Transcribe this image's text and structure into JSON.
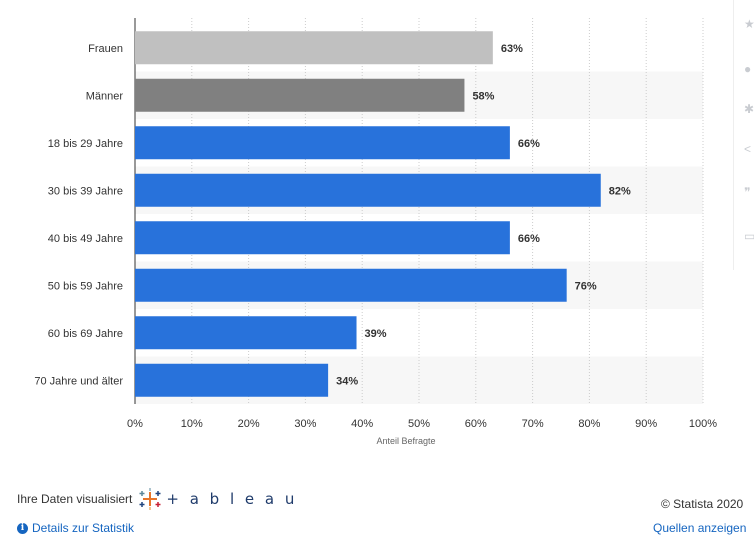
{
  "chart_data": {
    "type": "bar",
    "orientation": "horizontal",
    "categories": [
      "Frauen",
      "Männer",
      "18 bis 29 Jahre",
      "30 bis 39 Jahre",
      "40 bis 49 Jahre",
      "50 bis 59 Jahre",
      "60 bis 69 Jahre",
      "70 Jahre und älter"
    ],
    "values": [
      63,
      58,
      66,
      82,
      66,
      76,
      39,
      34
    ],
    "value_labels": [
      "63%",
      "58%",
      "66%",
      "82%",
      "66%",
      "76%",
      "39%",
      "34%"
    ],
    "bar_colors": [
      "#c0c0c0",
      "#808080",
      "#2872db",
      "#2872db",
      "#2872db",
      "#2872db",
      "#2872db",
      "#2872db"
    ],
    "xticks": [
      0,
      10,
      20,
      30,
      40,
      50,
      60,
      70,
      80,
      90,
      100
    ],
    "xtick_labels": [
      "0%",
      "10%",
      "20%",
      "30%",
      "40%",
      "50%",
      "60%",
      "70%",
      "80%",
      "90%",
      "100%"
    ],
    "xlim": [
      0,
      100
    ],
    "xlabel": "Anteil Befragte",
    "ylabel": "",
    "title": "",
    "grid": "vertical dashed",
    "legend": "none"
  },
  "footer": {
    "visualize_text": "Ihre Daten visualisiert",
    "tableau_text": "+ a b l e a u",
    "details_link": "Details zur Statistik",
    "copyright": "© Statista 2020",
    "sources_link": "Quellen anzeigen"
  },
  "toolbar_icons": [
    "star-icon",
    "bell-icon",
    "gear-icon",
    "share-icon",
    "quote-icon",
    "print-icon"
  ]
}
